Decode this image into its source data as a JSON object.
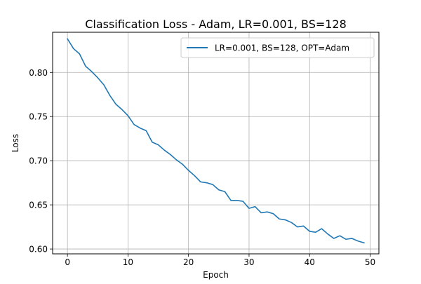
{
  "chart_data": {
    "type": "line",
    "title": "Classification Loss - Adam, LR=0.001, BS=128",
    "xlabel": "Epoch",
    "ylabel": "Loss",
    "xlim": [
      -2.45,
      51.45
    ],
    "ylim": [
      0.5945,
      0.8455
    ],
    "xticks": [
      0,
      10,
      20,
      30,
      40,
      50
    ],
    "xtick_labels": [
      "0",
      "10",
      "20",
      "30",
      "40",
      "50"
    ],
    "yticks": [
      0.6,
      0.65,
      0.7,
      0.75,
      0.8
    ],
    "ytick_labels": [
      "0.60",
      "0.65",
      "0.70",
      "0.75",
      "0.80"
    ],
    "grid": true,
    "legend_position": "top-right",
    "series": [
      {
        "name": "LR=0.001, BS=128, OPT=Adam",
        "color": "#1f77b4",
        "x": [
          0,
          1,
          2,
          3,
          4,
          5,
          6,
          7,
          8,
          9,
          10,
          11,
          12,
          13,
          14,
          15,
          16,
          17,
          18,
          19,
          20,
          21,
          22,
          23,
          24,
          25,
          26,
          27,
          28,
          29,
          30,
          31,
          32,
          33,
          34,
          35,
          36,
          37,
          38,
          39,
          40,
          41,
          42,
          43,
          44,
          45,
          46,
          47,
          48,
          49
        ],
        "values": [
          0.838,
          0.827,
          0.821,
          0.807,
          0.801,
          0.794,
          0.786,
          0.774,
          0.764,
          0.758,
          0.751,
          0.741,
          0.737,
          0.734,
          0.721,
          0.718,
          0.712,
          0.707,
          0.701,
          0.696,
          0.689,
          0.683,
          0.676,
          0.675,
          0.673,
          0.667,
          0.665,
          0.655,
          0.655,
          0.654,
          0.646,
          0.648,
          0.641,
          0.642,
          0.64,
          0.634,
          0.633,
          0.63,
          0.625,
          0.626,
          0.62,
          0.619,
          0.623,
          0.617,
          0.612,
          0.615,
          0.611,
          0.612,
          0.609,
          0.607
        ]
      }
    ]
  }
}
